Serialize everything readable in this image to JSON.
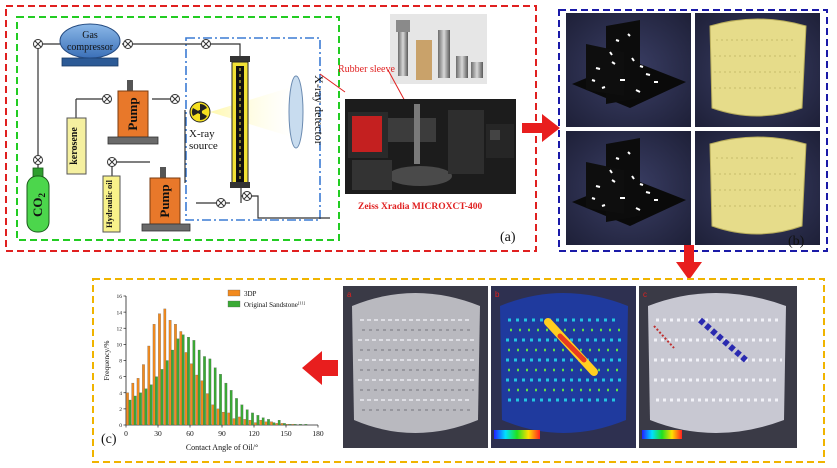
{
  "panel_a": {
    "gas_compressor_line1": "Gas",
    "gas_compressor_line2": "compressor",
    "pump_top": "Pump",
    "pump_bottom": "Pump",
    "kerosene": "kerosene",
    "co2": "CO",
    "co2_sub": "2",
    "hydraulic_oil": "Hydraulic oil",
    "xray_line1": "X-ray",
    "xray_line2": "source",
    "xray_detector": "X-ray detector",
    "rubber_sleeve": "Rubber sleeve",
    "instrument": "Zeiss Xradia MICROXCT-400",
    "label": "(a)"
  },
  "panel_b": {
    "label": "(b)"
  },
  "panel_c": {
    "label": "(c)",
    "img_labels": [
      "a",
      "b",
      "c"
    ]
  },
  "colors": {
    "red_border": "#e02020",
    "blue_border": "#1a1aa8",
    "green_border": "#22cc22",
    "yellow_border": "#f0b400",
    "bar_3dp": "#f28a1e",
    "bar_sandstone": "#3aaa35",
    "pump": "#e8782a",
    "co2": "#4cd64c",
    "kerosene": "#f5f0a0"
  },
  "chart_data": {
    "type": "bar",
    "xlabel": "Contact Angle of Oil/°",
    "ylabel": "Frequency/%",
    "xlim": [
      0,
      180
    ],
    "ylim": [
      0,
      16
    ],
    "xticks": [
      0,
      30,
      60,
      90,
      120,
      150,
      180
    ],
    "yticks": [
      0,
      2,
      4,
      6,
      8,
      10,
      12,
      14,
      16
    ],
    "legend_position": "top-right",
    "bin_width": 5,
    "x": [
      2.5,
      7.5,
      12.5,
      17.5,
      22.5,
      27.5,
      32.5,
      37.5,
      42.5,
      47.5,
      52.5,
      57.5,
      62.5,
      67.5,
      72.5,
      77.5,
      82.5,
      87.5,
      92.5,
      97.5,
      102.5,
      107.5,
      112.5,
      117.5,
      122.5,
      127.5,
      132.5,
      137.5,
      142.5,
      147.5,
      152.5,
      157.5,
      162.5,
      167.5
    ],
    "series": [
      {
        "name": "3DP",
        "values": [
          4.0,
          5.2,
          5.8,
          7.5,
          9.8,
          12.5,
          13.8,
          14.4,
          13.0,
          12.5,
          11.6,
          9.0,
          7.6,
          6.2,
          5.5,
          3.9,
          2.5,
          2.0,
          1.6,
          1.5,
          0.8,
          1.0,
          0.7,
          0.6,
          0.3,
          0.6,
          0.4,
          0.4,
          0.2,
          0.2,
          0.1,
          0.1,
          0,
          0
        ]
      },
      {
        "name": "Original Sandstone[11]",
        "values": [
          3.1,
          3.6,
          4.0,
          4.5,
          5.0,
          6.0,
          6.9,
          8.0,
          9.3,
          10.7,
          11.2,
          10.9,
          10.5,
          9.3,
          8.5,
          8.2,
          7.1,
          6.3,
          5.2,
          4.3,
          3.3,
          2.5,
          1.9,
          1.5,
          1.2,
          0.9,
          0.7,
          0.3,
          0.6,
          0.2,
          0.1,
          0.1,
          0.1,
          0.1
        ]
      }
    ],
    "legend_3dp": "3DP",
    "legend_sandstone": "Original Sandstone",
    "legend_sandstone_ref": "[11]"
  }
}
